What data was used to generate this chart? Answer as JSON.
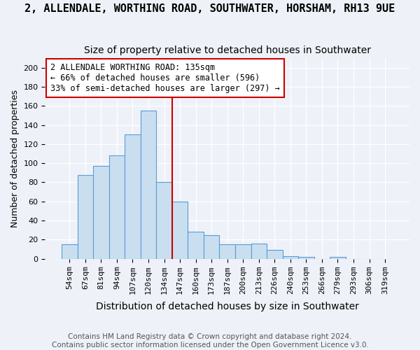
{
  "title": "2, ALLENDALE, WORTHING ROAD, SOUTHWATER, HORSHAM, RH13 9UE",
  "subtitle": "Size of property relative to detached houses in Southwater",
  "xlabel": "Distribution of detached houses by size in Southwater",
  "ylabel": "Number of detached properties",
  "bins": [
    "54sqm",
    "67sqm",
    "81sqm",
    "94sqm",
    "107sqm",
    "120sqm",
    "134sqm",
    "147sqm",
    "160sqm",
    "173sqm",
    "187sqm",
    "200sqm",
    "213sqm",
    "226sqm",
    "240sqm",
    "253sqm",
    "266sqm",
    "279sqm",
    "293sqm",
    "306sqm",
    "319sqm"
  ],
  "values": [
    15,
    88,
    97,
    108,
    130,
    155,
    80,
    60,
    28,
    25,
    15,
    15,
    16,
    9,
    3,
    2,
    0,
    2,
    0,
    0,
    0
  ],
  "bar_color": "#c9dff0",
  "bar_edge_color": "#5b9bd5",
  "vline_pos": 6.5,
  "vline_color": "#cc0000",
  "annotation_lines": [
    "2 ALLENDALE WORTHING ROAD: 135sqm",
    "← 66% of detached houses are smaller (596)",
    "33% of semi-detached houses are larger (297) →"
  ],
  "annotation_box_color": "white",
  "annotation_box_edge_color": "#cc0000",
  "ylim": [
    0,
    210
  ],
  "yticks": [
    0,
    20,
    40,
    60,
    80,
    100,
    120,
    140,
    160,
    180,
    200
  ],
  "footer_line1": "Contains HM Land Registry data © Crown copyright and database right 2024.",
  "footer_line2": "Contains public sector information licensed under the Open Government Licence v3.0.",
  "title_fontsize": 11,
  "subtitle_fontsize": 10,
  "xlabel_fontsize": 10,
  "ylabel_fontsize": 9,
  "tick_fontsize": 8,
  "footer_fontsize": 7.5,
  "annotation_fontsize": 8.5,
  "background_color": "#eef2f8"
}
